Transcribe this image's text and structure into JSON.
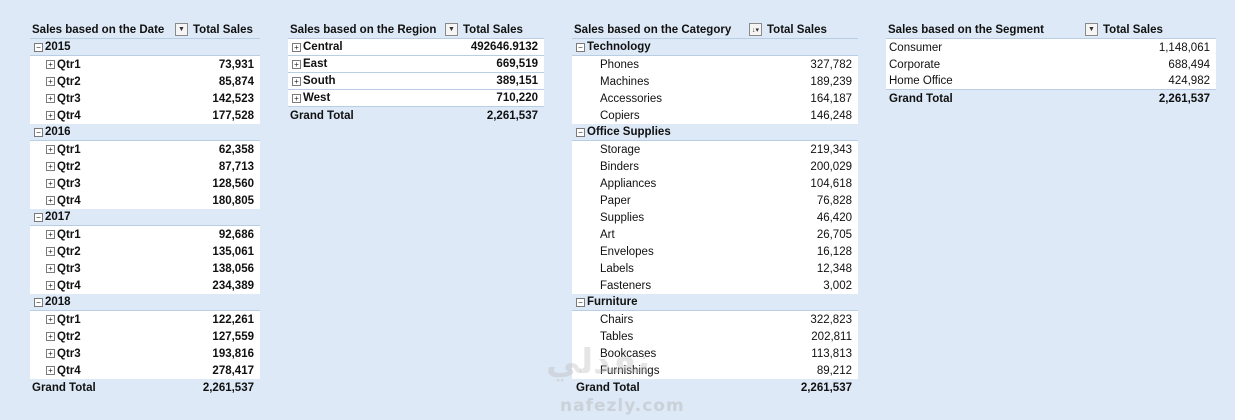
{
  "pivots": {
    "date": {
      "header": "Sales based on the Date",
      "value_header": "Total Sales",
      "years": [
        {
          "label": "2015",
          "quarters": [
            {
              "label": "Qtr1",
              "value": "73,931"
            },
            {
              "label": "Qtr2",
              "value": "85,874"
            },
            {
              "label": "Qtr3",
              "value": "142,523"
            },
            {
              "label": "Qtr4",
              "value": "177,528"
            }
          ]
        },
        {
          "label": "2016",
          "quarters": [
            {
              "label": "Qtr1",
              "value": "62,358"
            },
            {
              "label": "Qtr2",
              "value": "87,713"
            },
            {
              "label": "Qtr3",
              "value": "128,560"
            },
            {
              "label": "Qtr4",
              "value": "180,805"
            }
          ]
        },
        {
          "label": "2017",
          "quarters": [
            {
              "label": "Qtr1",
              "value": "92,686"
            },
            {
              "label": "Qtr2",
              "value": "135,061"
            },
            {
              "label": "Qtr3",
              "value": "138,056"
            },
            {
              "label": "Qtr4",
              "value": "234,389"
            }
          ]
        },
        {
          "label": "2018",
          "quarters": [
            {
              "label": "Qtr1",
              "value": "122,261"
            },
            {
              "label": "Qtr2",
              "value": "127,559"
            },
            {
              "label": "Qtr3",
              "value": "193,816"
            },
            {
              "label": "Qtr4",
              "value": "278,417"
            }
          ]
        }
      ],
      "grand_total_label": "Grand Total",
      "grand_total": "2,261,537"
    },
    "region": {
      "header": "Sales based on the Region",
      "value_header": "Total Sales",
      "rows": [
        {
          "label": "Central",
          "value": "492646.9132"
        },
        {
          "label": "East",
          "value": "669,519"
        },
        {
          "label": "South",
          "value": "389,151"
        },
        {
          "label": "West",
          "value": "710,220"
        }
      ],
      "grand_total_label": "Grand Total",
      "grand_total": "2,261,537"
    },
    "category": {
      "header": "Sales based on the Category",
      "value_header": "Total Sales",
      "groups": [
        {
          "label": "Technology",
          "items": [
            {
              "label": "Phones",
              "value": "327,782"
            },
            {
              "label": "Machines",
              "value": "189,239"
            },
            {
              "label": "Accessories",
              "value": "164,187"
            },
            {
              "label": "Copiers",
              "value": "146,248"
            }
          ]
        },
        {
          "label": "Office Supplies",
          "items": [
            {
              "label": "Storage",
              "value": "219,343"
            },
            {
              "label": "Binders",
              "value": "200,029"
            },
            {
              "label": "Appliances",
              "value": "104,618"
            },
            {
              "label": "Paper",
              "value": "76,828"
            },
            {
              "label": "Supplies",
              "value": "46,420"
            },
            {
              "label": "Art",
              "value": "26,705"
            },
            {
              "label": "Envelopes",
              "value": "16,128"
            },
            {
              "label": "Labels",
              "value": "12,348"
            },
            {
              "label": "Fasteners",
              "value": "3,002"
            }
          ]
        },
        {
          "label": "Furniture",
          "items": [
            {
              "label": "Chairs",
              "value": "322,823"
            },
            {
              "label": "Tables",
              "value": "202,811"
            },
            {
              "label": "Bookcases",
              "value": "113,813"
            },
            {
              "label": "Furnishings",
              "value": "89,212"
            }
          ]
        }
      ],
      "grand_total_label": "Grand Total",
      "grand_total": "2,261,537"
    },
    "segment": {
      "header": "Sales based on the Segment",
      "value_header": "Total Sales",
      "rows": [
        {
          "label": "Consumer",
          "value": "1,148,061"
        },
        {
          "label": "Corporate",
          "value": "688,494"
        },
        {
          "label": "Home Office",
          "value": "424,982"
        }
      ],
      "grand_total_label": "Grand Total",
      "grand_total": "2,261,537"
    }
  },
  "icons": {
    "collapse": "minus-box-icon",
    "expand": "plus-box-icon",
    "filter": "filter-dropdown-icon",
    "sort": "sort-descending-icon"
  },
  "colors": {
    "background": "#dde9f6",
    "row_background": "#ffffff",
    "border": "#b9cde5"
  },
  "watermark": {
    "arabic": "نفذلي",
    "latin": "nafezly.com"
  }
}
